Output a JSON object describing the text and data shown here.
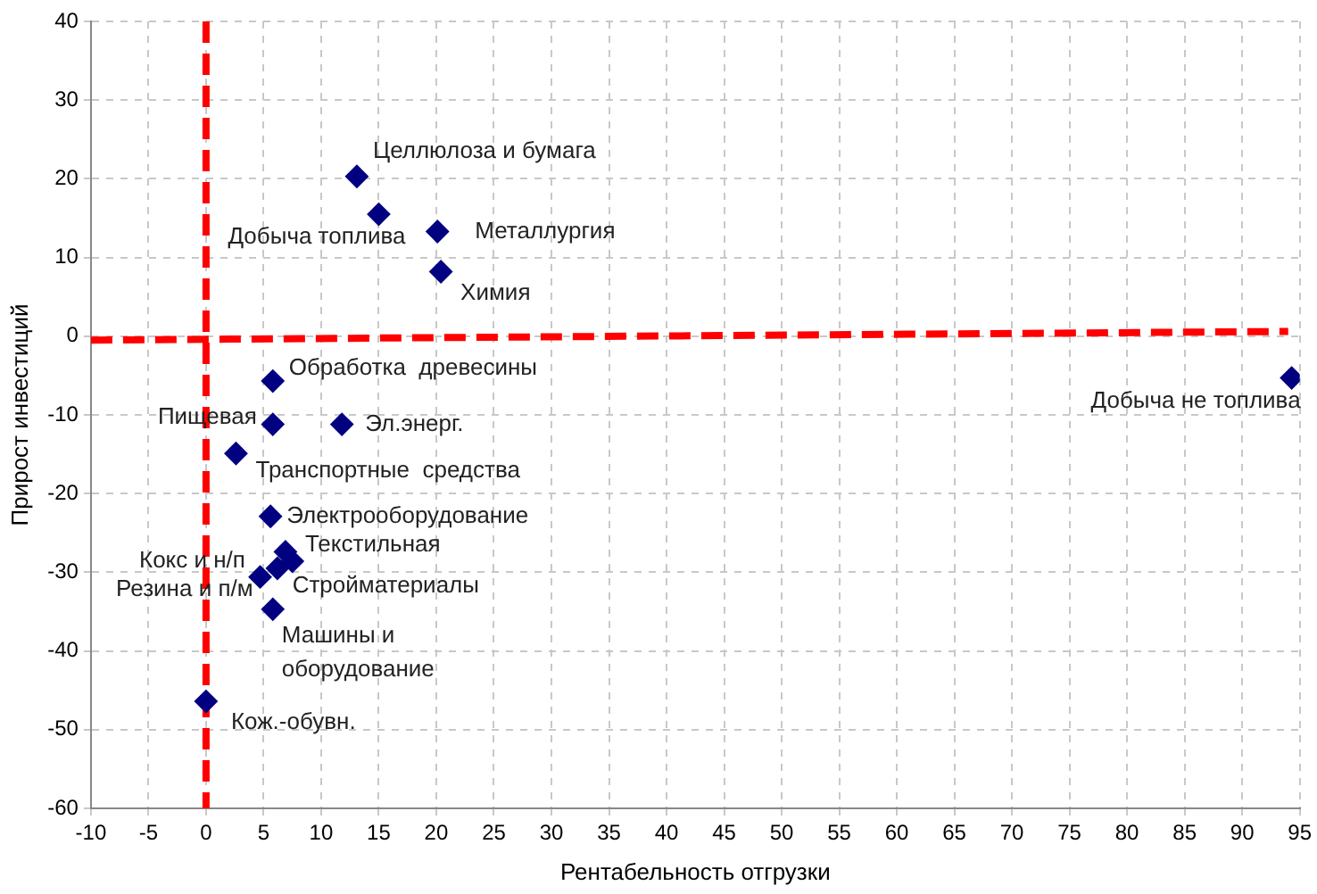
{
  "chart_data": {
    "type": "scatter",
    "xlabel": "Рентабельность отгрузки",
    "ylabel": "Прирост инвестиций",
    "xlim": [
      -10,
      95
    ],
    "xticks": [
      -10,
      -5,
      0,
      5,
      10,
      15,
      20,
      25,
      30,
      35,
      40,
      45,
      50,
      55,
      60,
      65,
      70,
      75,
      80,
      85,
      90,
      95
    ],
    "ylim": [
      -60,
      40
    ],
    "yticks": [
      -60,
      -50,
      -40,
      -30,
      -20,
      -10,
      0,
      10,
      20,
      30,
      40
    ],
    "grid": true,
    "legend": false,
    "marker": "diamond",
    "series": [
      {
        "color": "#000080",
        "x": [
          13.1,
          15.0,
          20.1,
          20.4,
          5.8,
          5.8,
          11.8,
          2.6,
          5.6,
          6.9,
          7.5,
          6.2,
          4.7,
          5.8,
          0,
          94.3
        ],
        "values": [
          20.3,
          15.5,
          13.3,
          8.2,
          -5.7,
          -11.2,
          -11.2,
          -14.9,
          -22.9,
          -27.4,
          -28.6,
          -29.5,
          -30.6,
          -34.7,
          -46.4,
          -5.3
        ]
      },
      {
        "type": "line",
        "color": "#ff0000",
        "line_style": "dashed",
        "marker": "none",
        "x": [
          -10,
          94
        ],
        "values": [
          -0.5,
          0.6
        ]
      }
    ],
    "ref_lines": [
      {
        "axis": "x",
        "value": 0,
        "color": "#ff0000",
        "line_style": "dashed"
      }
    ],
    "annotations": [
      {
        "text": "Целлюлоза и бумага",
        "x": 13.1,
        "y": 20.3
      },
      {
        "text": "Добыча топлива",
        "x": 15.0,
        "y": 15.5
      },
      {
        "text": "Металлургия",
        "x": 20.1,
        "y": 13.3
      },
      {
        "text": "Химия",
        "x": 20.4,
        "y": 8.2
      },
      {
        "text": "Обработка  древесины",
        "x": 5.8,
        "y": -5.7
      },
      {
        "text": "Пищевая",
        "x": 5.8,
        "y": -11.2
      },
      {
        "text": "Эл.энерг.",
        "x": 11.8,
        "y": -11.2
      },
      {
        "text": "Транспортные  средства",
        "x": 2.6,
        "y": -14.9
      },
      {
        "text": "Электрооборудование",
        "x": 5.6,
        "y": -22.9
      },
      {
        "text": "Текстильная",
        "x": 6.9,
        "y": -27.4
      },
      {
        "text": "Стройматериалы",
        "x": 7.5,
        "y": -28.6
      },
      {
        "text": "Кокс и н/п",
        "x": 6.2,
        "y": -29.5
      },
      {
        "text": "Резина и п/м",
        "x": 4.7,
        "y": -30.6
      },
      {
        "text": "Машины и оборудование",
        "x": 5.8,
        "y": -34.7
      },
      {
        "text": "Кож.-обувн.",
        "x": 0,
        "y": -46.4
      },
      {
        "text": "Добыча не топлива",
        "x": 94.3,
        "y": -5.3
      }
    ]
  }
}
